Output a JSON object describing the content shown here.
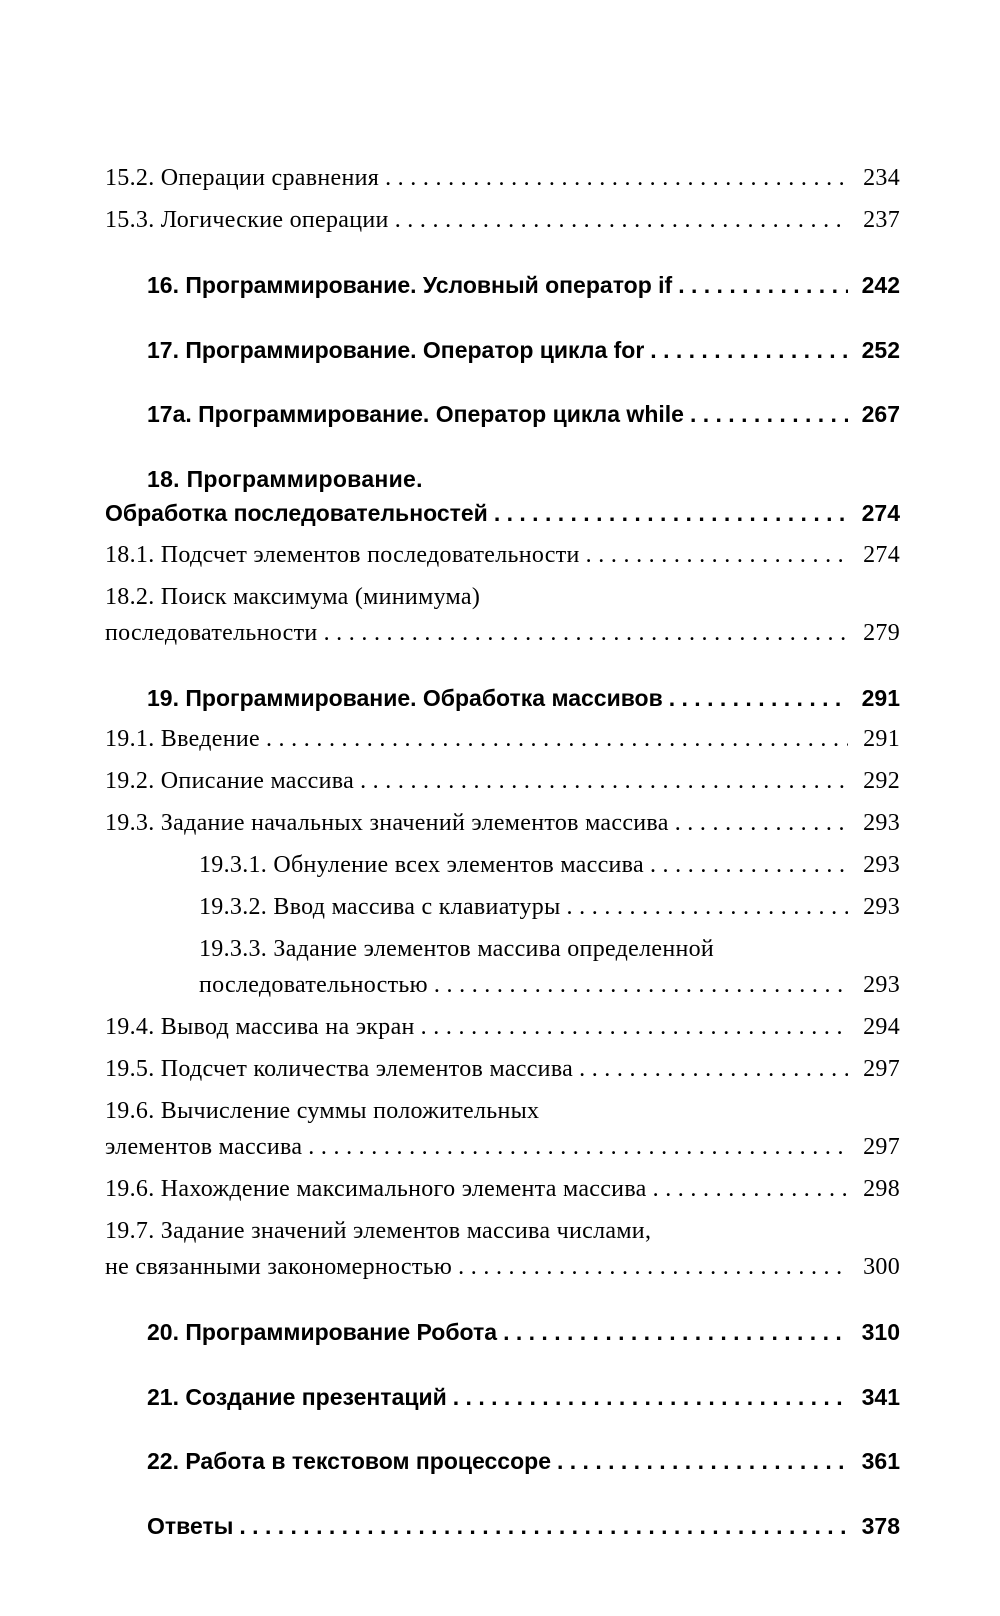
{
  "leader_dots": " . . . . . . . . . . . . . . . . . . . . . . . . . . . . . . . . . . . . . . . . . . . . . . . . . . . . . . . . . . . . . . . . . . . . . . . . . . . . . . . .",
  "toc": [
    {
      "label": "15.2. Операции сравнения",
      "page": "234",
      "bold": false,
      "indent": 0,
      "gap": false
    },
    {
      "label": "15.3. Логические операции",
      "page": "237",
      "bold": false,
      "indent": 0,
      "gap": false
    },
    {
      "label": "16. Программирование. Условный оператор if",
      "page": "242",
      "bold": true,
      "indent": 1,
      "gap": true
    },
    {
      "label": "17. Программирование. Оператор цикла for",
      "page": "252",
      "bold": true,
      "indent": 1,
      "gap": true
    },
    {
      "label": "17а. Программирование. Оператор цикла while",
      "page": "267",
      "bold": true,
      "indent": 1,
      "gap": true
    },
    {
      "wrap_first": "18. Программирование.",
      "label": "Обработка последовательностей",
      "page": "274",
      "bold": true,
      "indent": 0,
      "first_indent": 1,
      "gap": true
    },
    {
      "label": "18.1. Подсчет элементов последовательности",
      "page": "274",
      "bold": false,
      "indent": 0,
      "gap": false
    },
    {
      "wrap_first": "18.2. Поиск максимума (минимума)",
      "label": "последовательности",
      "page": "279",
      "bold": false,
      "indent": 0,
      "first_indent": 0,
      "gap": false
    },
    {
      "label": "19. Программирование. Обработка массивов",
      "page": "291",
      "bold": true,
      "indent": 1,
      "gap": true
    },
    {
      "label": "19.1. Введение",
      "page": "291",
      "bold": false,
      "indent": 0,
      "gap": false
    },
    {
      "label": "19.2. Описание массива",
      "page": "292",
      "bold": false,
      "indent": 0,
      "gap": false
    },
    {
      "label": "19.3. Задание начальных значений элементов массива",
      "page": "293",
      "bold": false,
      "indent": 0,
      "gap": false
    },
    {
      "label": "19.3.1. Обнуление всех элементов массива",
      "page": "293",
      "bold": false,
      "indent": 2,
      "gap": false
    },
    {
      "label": "19.3.2. Ввод массива с клавиатуры",
      "page": "293",
      "bold": false,
      "indent": 2,
      "gap": false
    },
    {
      "wrap_first": "19.3.3. Задание элементов массива определенной",
      "label": "последовательностью",
      "page": "293",
      "bold": false,
      "indent": 2,
      "first_indent": 2,
      "gap": false
    },
    {
      "label": "19.4. Вывод массива на экран",
      "page": "294",
      "bold": false,
      "indent": 0,
      "gap": false
    },
    {
      "label": "19.5. Подсчет количества элементов массива",
      "page": "297",
      "bold": false,
      "indent": 0,
      "gap": false
    },
    {
      "wrap_first": "19.6. Вычисление суммы положительных",
      "label": "элементов массива",
      "page": "297",
      "bold": false,
      "indent": 0,
      "first_indent": 0,
      "gap": false
    },
    {
      "label": "19.6. Нахождение максимального элемента массива",
      "page": "298",
      "bold": false,
      "indent": 0,
      "gap": false
    },
    {
      "wrap_first": "19.7. Задание значений элементов массива числами,",
      "label": "не связанными закономерностью",
      "page": "300",
      "bold": false,
      "indent": 0,
      "first_indent": 0,
      "gap": false
    },
    {
      "label": "20. Программирование Робота",
      "page": "310",
      "bold": true,
      "indent": 1,
      "gap": true
    },
    {
      "label": "21. Создание презентаций",
      "page": "341",
      "bold": true,
      "indent": 1,
      "gap": true
    },
    {
      "label": "22. Работа в текстовом процессоре",
      "page": "361",
      "bold": true,
      "indent": 1,
      "gap": true
    },
    {
      "label": "Ответы",
      "page": "378",
      "bold": true,
      "indent": 1,
      "gap": true
    }
  ]
}
